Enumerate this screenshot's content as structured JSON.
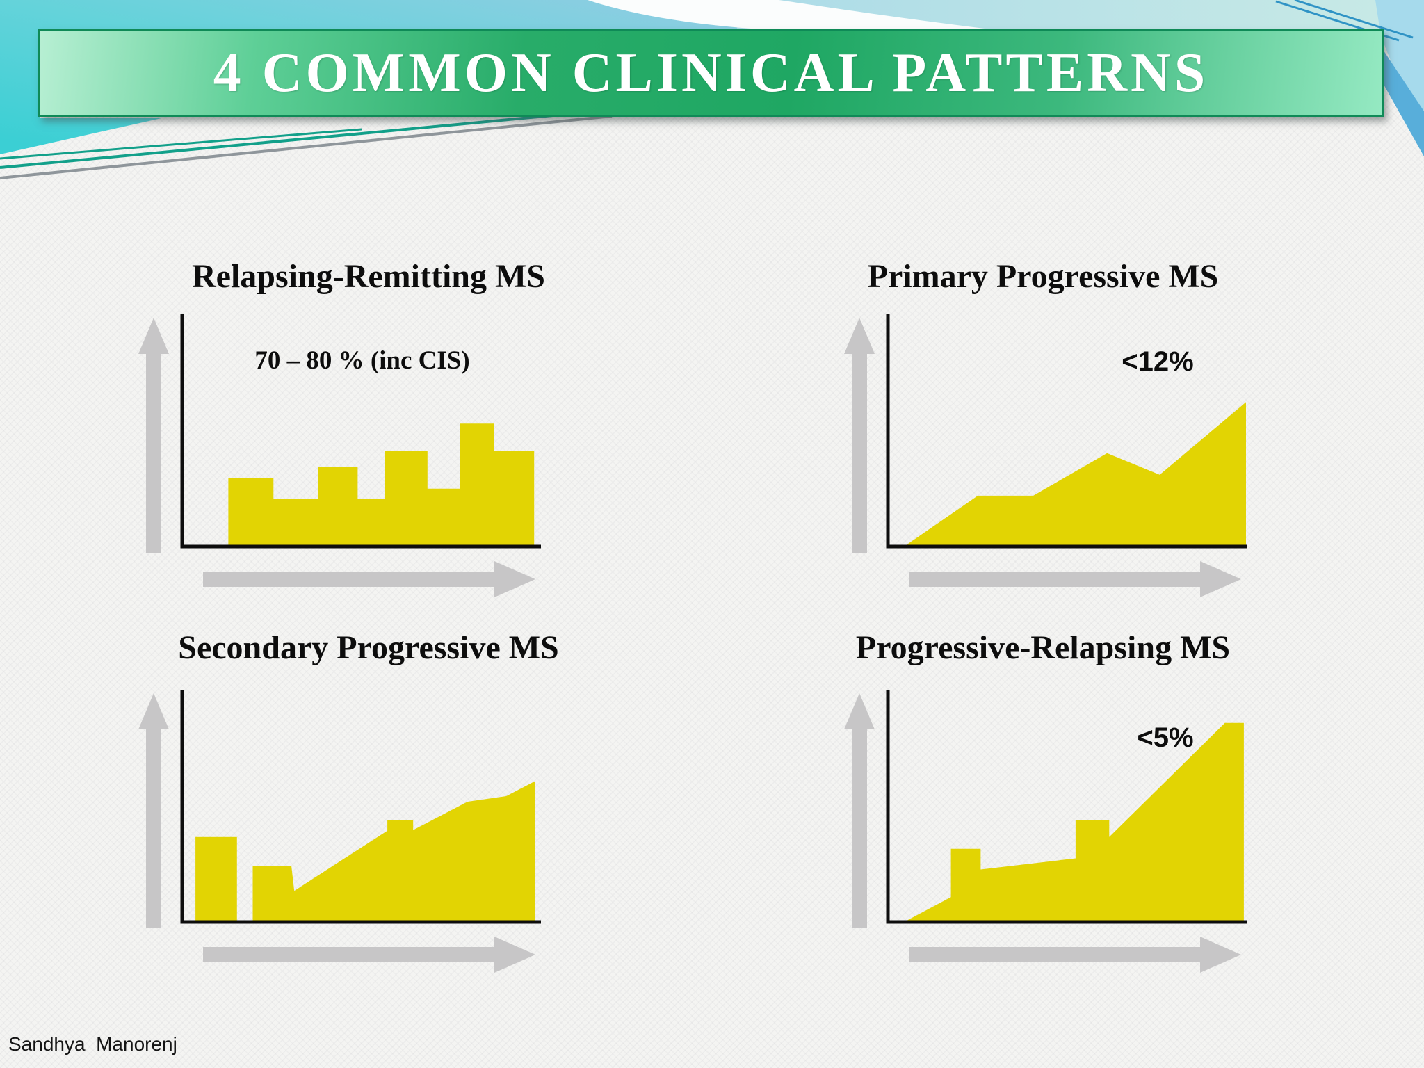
{
  "slide": {
    "title": "4 COMMON CLINICAL PATTERNS",
    "footer": "Sandhya  Manorenj"
  },
  "icons": {
    "y_axis": "up-arrow",
    "x_axis": "right-arrow"
  },
  "colors": {
    "banner_gradient_left": "#b7efd3",
    "banner_gradient_mid": "#28ac69",
    "banner_gradient_right": "#95e9c2",
    "banner_border": "#0f8a57",
    "banner_text": "#ffffff",
    "curve_yellow": "#e2d403",
    "arrow_gray": "#c7c6c7",
    "axis_black": "#0d0d0d",
    "bg_white": "#f4f4f2",
    "bg_blue": "#90cbe2",
    "bg_turquoise": "#3ccfd4",
    "teal_line": "#12a08a",
    "gray_line": "#8f969b",
    "corner_stripe_blue": "#58aeda"
  },
  "chart_data": [
    {
      "id": "rrms",
      "type": "area",
      "title": "Relapsing-Remitting MS",
      "annotation": "70 – 80 % (inc CIS)",
      "x_range": [
        0,
        100
      ],
      "y_range": [
        0,
        100
      ],
      "points": [
        [
          12.9,
          0
        ],
        [
          12.9,
          29.4
        ],
        [
          25.5,
          29.4
        ],
        [
          25.5,
          20.4
        ],
        [
          38.0,
          20.4
        ],
        [
          38.0,
          34.2
        ],
        [
          49.0,
          34.2
        ],
        [
          49.0,
          20.4
        ],
        [
          56.6,
          20.4
        ],
        [
          56.6,
          41.1
        ],
        [
          68.5,
          41.1
        ],
        [
          68.5,
          24.9
        ],
        [
          77.6,
          24.9
        ],
        [
          77.6,
          52.9
        ],
        [
          87.1,
          52.9
        ],
        [
          87.1,
          41.1
        ],
        [
          98.3,
          41.1
        ],
        [
          98.3,
          0
        ]
      ]
    },
    {
      "id": "ppms",
      "type": "area",
      "title": "Primary Progressive MS",
      "annotation": "<12%",
      "x_range": [
        0,
        100
      ],
      "y_range": [
        0,
        100
      ],
      "points": [
        [
          4.5,
          0
        ],
        [
          25.1,
          21.9
        ],
        [
          40.6,
          21.9
        ],
        [
          61.2,
          40.2
        ],
        [
          75.9,
          30.9
        ],
        [
          100,
          62.2
        ],
        [
          100,
          0
        ]
      ]
    },
    {
      "id": "spms",
      "type": "area",
      "title": "Secondary Progressive MS",
      "annotation": "",
      "x_range": [
        0,
        100
      ],
      "y_range": [
        0,
        100
      ],
      "bars": [
        {
          "x1": 3.7,
          "x2": 15.3,
          "height": 36.6
        }
      ],
      "points": [
        [
          19.7,
          0
        ],
        [
          19.7,
          24.1
        ],
        [
          30.5,
          24.1
        ],
        [
          31.3,
          13.4
        ],
        [
          57.3,
          39.3
        ],
        [
          57.3,
          44.0
        ],
        [
          64.5,
          44.0
        ],
        [
          64.5,
          39.6
        ],
        [
          79.7,
          51.8
        ],
        [
          90.5,
          54.2
        ],
        [
          98.6,
          60.7
        ],
        [
          98.6,
          0
        ]
      ]
    },
    {
      "id": "prms",
      "type": "area",
      "title": "Progressive-Relapsing MS",
      "annotation": "<5%",
      "x_range": [
        0,
        100
      ],
      "y_range": [
        0,
        100
      ],
      "points": [
        [
          4.5,
          0
        ],
        [
          17.6,
          10.7
        ],
        [
          17.6,
          31.5
        ],
        [
          25.9,
          31.5
        ],
        [
          25.9,
          22.6
        ],
        [
          52.4,
          27.4
        ],
        [
          52.4,
          44.0
        ],
        [
          61.8,
          44.0
        ],
        [
          61.8,
          36.6
        ],
        [
          94.1,
          85.7
        ],
        [
          99.4,
          85.7
        ],
        [
          99.4,
          0
        ]
      ]
    }
  ]
}
